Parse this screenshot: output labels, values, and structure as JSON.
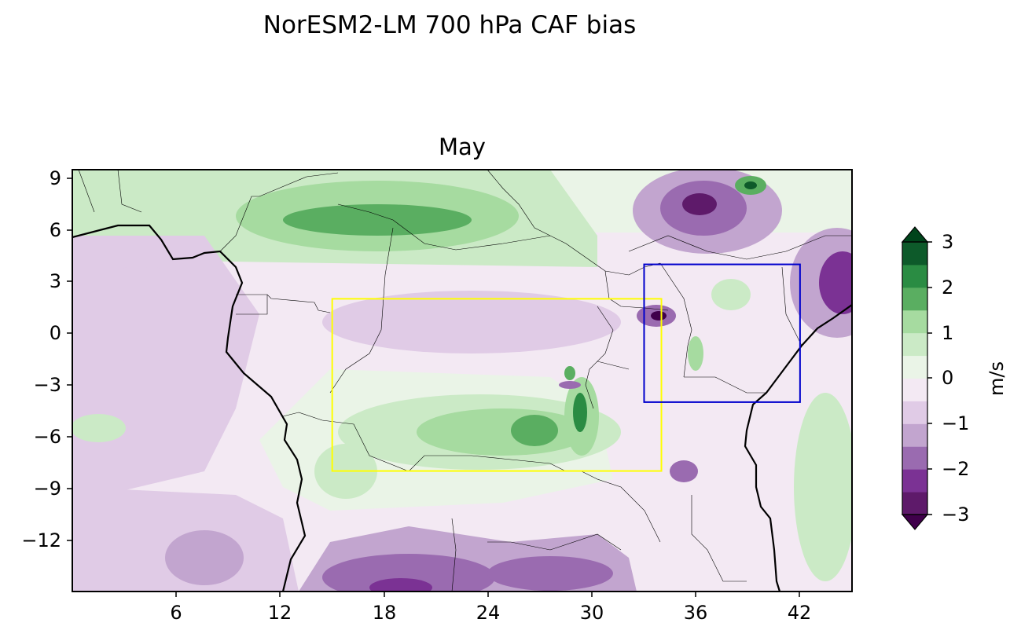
{
  "figure": {
    "suptitle": "NorESM2-LM 700 hPa CAF bias",
    "panel_title": "May"
  },
  "map": {
    "lon_range": [
      0,
      45
    ],
    "lat_range": [
      -15,
      9.5
    ],
    "x_ticks": [
      "6",
      "12",
      "18",
      "24",
      "30",
      "36",
      "42"
    ],
    "y_ticks": [
      "9",
      "6",
      "3",
      "0",
      "−3",
      "−6",
      "−9",
      "−12"
    ],
    "regions": [
      {
        "name": "yellow-box",
        "color": "#ffff00",
        "lon": [
          15,
          34
        ],
        "lat": [
          -8,
          2
        ]
      },
      {
        "name": "blue-box",
        "color": "#0000cc",
        "lon": [
          33,
          42
        ],
        "lat": [
          -4,
          4
        ]
      }
    ]
  },
  "colorbar": {
    "label": "m/s",
    "ticks": [
      "3",
      "2",
      "1",
      "0",
      "−1",
      "−2",
      "−3"
    ],
    "levels": [
      -3,
      -2.5,
      -2,
      -1.5,
      -1,
      -0.5,
      0,
      0.5,
      1,
      1.5,
      2,
      2.5,
      3
    ],
    "colors": [
      "#40004b",
      "#5e1a6a",
      "#7b3294",
      "#9a6bb0",
      "#c2a5cf",
      "#e0cbe6",
      "#f3e9f3",
      "#eaf4e7",
      "#cbeac6",
      "#a6dba0",
      "#5aae61",
      "#2a8c43",
      "#0d5a2a",
      "#00441b"
    ]
  }
}
